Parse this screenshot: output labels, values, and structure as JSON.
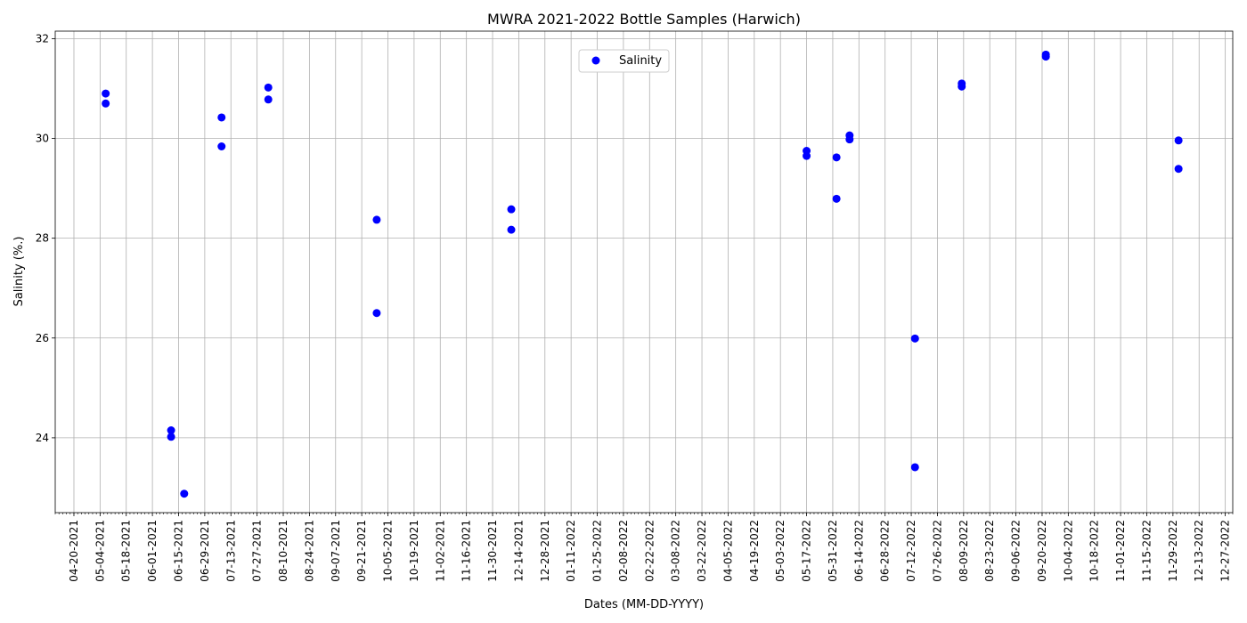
{
  "chart_data": {
    "type": "scatter",
    "title": "MWRA 2021-2022 Bottle Samples (Harwich)",
    "xlabel": "Dates (MM-DD-YYYY)",
    "ylabel": "Salinity (%.)",
    "xlim": [
      "2021-04-10",
      "2022-12-31"
    ],
    "ylim": [
      22.5,
      32.15
    ],
    "grid": true,
    "legend_position": "top-center",
    "point_color": "#0000ff",
    "y_ticks": [
      24,
      26,
      28,
      30,
      32
    ],
    "x_ticks": [
      "04-20-2021",
      "05-04-2021",
      "05-18-2021",
      "06-01-2021",
      "06-15-2021",
      "06-29-2021",
      "07-13-2021",
      "07-27-2021",
      "08-10-2021",
      "08-24-2021",
      "09-07-2021",
      "09-21-2021",
      "10-05-2021",
      "10-19-2021",
      "11-02-2021",
      "11-16-2021",
      "11-30-2021",
      "12-14-2021",
      "12-28-2021",
      "01-11-2022",
      "01-25-2022",
      "02-08-2022",
      "02-22-2022",
      "03-08-2022",
      "03-22-2022",
      "04-05-2022",
      "04-19-2022",
      "05-03-2022",
      "05-17-2022",
      "05-31-2022",
      "06-14-2022",
      "06-28-2022",
      "07-12-2022",
      "07-26-2022",
      "08-09-2022",
      "08-23-2022",
      "09-06-2022",
      "09-20-2022",
      "10-04-2022",
      "10-18-2022",
      "11-01-2022",
      "11-15-2022",
      "11-29-2022",
      "12-13-2022",
      "12-27-2022"
    ],
    "series": [
      {
        "name": "Salinity",
        "points": [
          {
            "x": "2021-05-07",
            "y": 30.9
          },
          {
            "x": "2021-05-07",
            "y": 30.7
          },
          {
            "x": "2021-06-11",
            "y": 24.15
          },
          {
            "x": "2021-06-11",
            "y": 24.02
          },
          {
            "x": "2021-06-18",
            "y": 22.88
          },
          {
            "x": "2021-07-08",
            "y": 30.42
          },
          {
            "x": "2021-07-08",
            "y": 29.84
          },
          {
            "x": "2021-08-02",
            "y": 31.02
          },
          {
            "x": "2021-08-02",
            "y": 30.78
          },
          {
            "x": "2021-09-29",
            "y": 28.37
          },
          {
            "x": "2021-09-29",
            "y": 26.5
          },
          {
            "x": "2021-12-10",
            "y": 28.58
          },
          {
            "x": "2021-12-10",
            "y": 28.17
          },
          {
            "x": "2022-05-17",
            "y": 29.75
          },
          {
            "x": "2022-05-17",
            "y": 29.65
          },
          {
            "x": "2022-06-02",
            "y": 29.62
          },
          {
            "x": "2022-06-02",
            "y": 28.79
          },
          {
            "x": "2022-06-09",
            "y": 30.06
          },
          {
            "x": "2022-06-09",
            "y": 29.98
          },
          {
            "x": "2022-07-14",
            "y": 25.99
          },
          {
            "x": "2022-07-14",
            "y": 23.41
          },
          {
            "x": "2022-08-08",
            "y": 31.1
          },
          {
            "x": "2022-08-08",
            "y": 31.04
          },
          {
            "x": "2022-09-22",
            "y": 31.68
          },
          {
            "x": "2022-09-22",
            "y": 31.64
          },
          {
            "x": "2022-12-02",
            "y": 29.96
          },
          {
            "x": "2022-12-02",
            "y": 29.39
          }
        ]
      }
    ]
  }
}
